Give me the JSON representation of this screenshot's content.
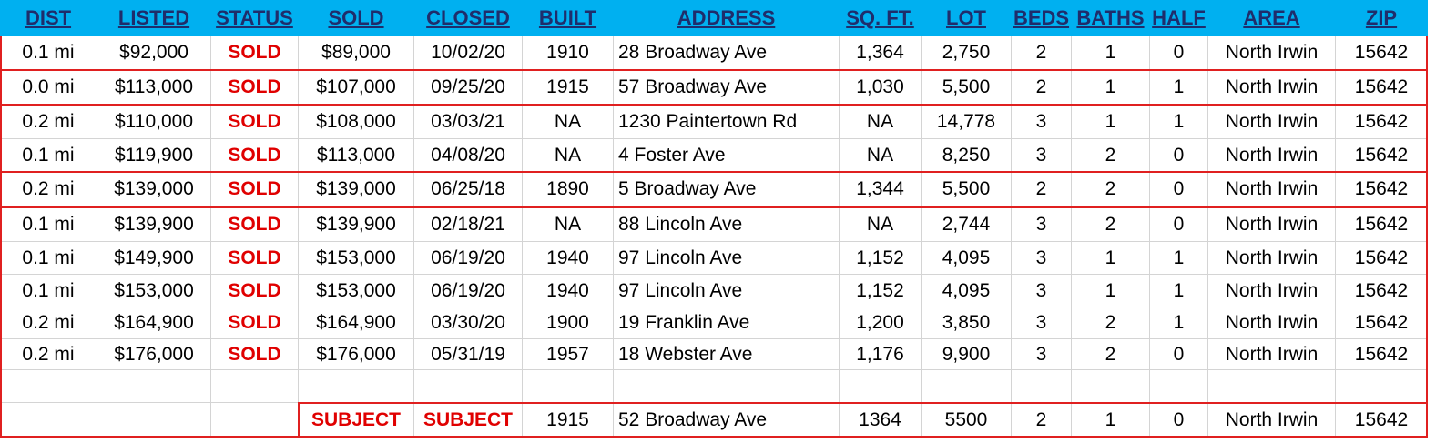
{
  "header": {
    "columns": [
      "DIST",
      "LISTED",
      "STATUS",
      "SOLD",
      "CLOSED",
      "BUILT",
      "ADDRESS",
      "SQ. FT.",
      "LOT",
      "BEDS",
      "BATHS",
      "HALF",
      "AREA",
      "ZIP"
    ]
  },
  "table": {
    "rows": [
      [
        "0.1 mi",
        "$92,000",
        "SOLD",
        "$89,000",
        "10/02/20",
        "1910",
        "28 Broadway Ave",
        "1,364",
        "2,750",
        "2",
        "1",
        "0",
        "North Irwin",
        "15642"
      ],
      [
        "0.0 mi",
        "$113,000",
        "SOLD",
        "$107,000",
        "09/25/20",
        "1915",
        "57 Broadway Ave",
        "1,030",
        "5,500",
        "2",
        "1",
        "1",
        "North Irwin",
        "15642"
      ],
      [
        "0.2 mi",
        "$110,000",
        "SOLD",
        "$108,000",
        "03/03/21",
        "NA",
        "1230 Paintertown Rd",
        "NA",
        "14,778",
        "3",
        "1",
        "1",
        "North Irwin",
        "15642"
      ],
      [
        "0.1 mi",
        "$119,900",
        "SOLD",
        "$113,000",
        "04/08/20",
        "NA",
        "4 Foster Ave",
        "NA",
        "8,250",
        "3",
        "2",
        "0",
        "North Irwin",
        "15642"
      ],
      [
        "0.2 mi",
        "$139,000",
        "SOLD",
        "$139,000",
        "06/25/18",
        "1890",
        "5 Broadway Ave",
        "1,344",
        "5,500",
        "2",
        "2",
        "0",
        "North Irwin",
        "15642"
      ],
      [
        "0.1 mi",
        "$139,900",
        "SOLD",
        "$139,900",
        "02/18/21",
        "NA",
        "88 Lincoln Ave",
        "NA",
        "2,744",
        "3",
        "2",
        "0",
        "North Irwin",
        "15642"
      ],
      [
        "0.1 mi",
        "$149,900",
        "SOLD",
        "$153,000",
        "06/19/20",
        "1940",
        "97 Lincoln Ave",
        "1,152",
        "4,095",
        "3",
        "1",
        "1",
        "North Irwin",
        "15642"
      ],
      [
        "0.1 mi",
        "$153,000",
        "SOLD",
        "$153,000",
        "06/19/20",
        "1940",
        "97 Lincoln Ave",
        "1,152",
        "4,095",
        "3",
        "1",
        "1",
        "North Irwin",
        "15642"
      ],
      [
        "0.2 mi",
        "$164,900",
        "SOLD",
        "$164,900",
        "03/30/20",
        "1900",
        "19 Franklin Ave",
        "1,200",
        "3,850",
        "3",
        "2",
        "1",
        "North Irwin",
        "15642"
      ],
      [
        "0.2 mi",
        "$176,000",
        "SOLD",
        "$176,000",
        "05/31/19",
        "1957",
        "18 Webster Ave",
        "1,176",
        "9,900",
        "3",
        "2",
        "0",
        "North Irwin",
        "15642"
      ]
    ]
  },
  "subject": {
    "cells": [
      "SUBJECT",
      "SUBJECT",
      "1915",
      "52 Broadway Ave",
      "1364",
      "5500",
      "2",
      "1",
      "0",
      "North Irwin",
      "15642"
    ]
  }
}
